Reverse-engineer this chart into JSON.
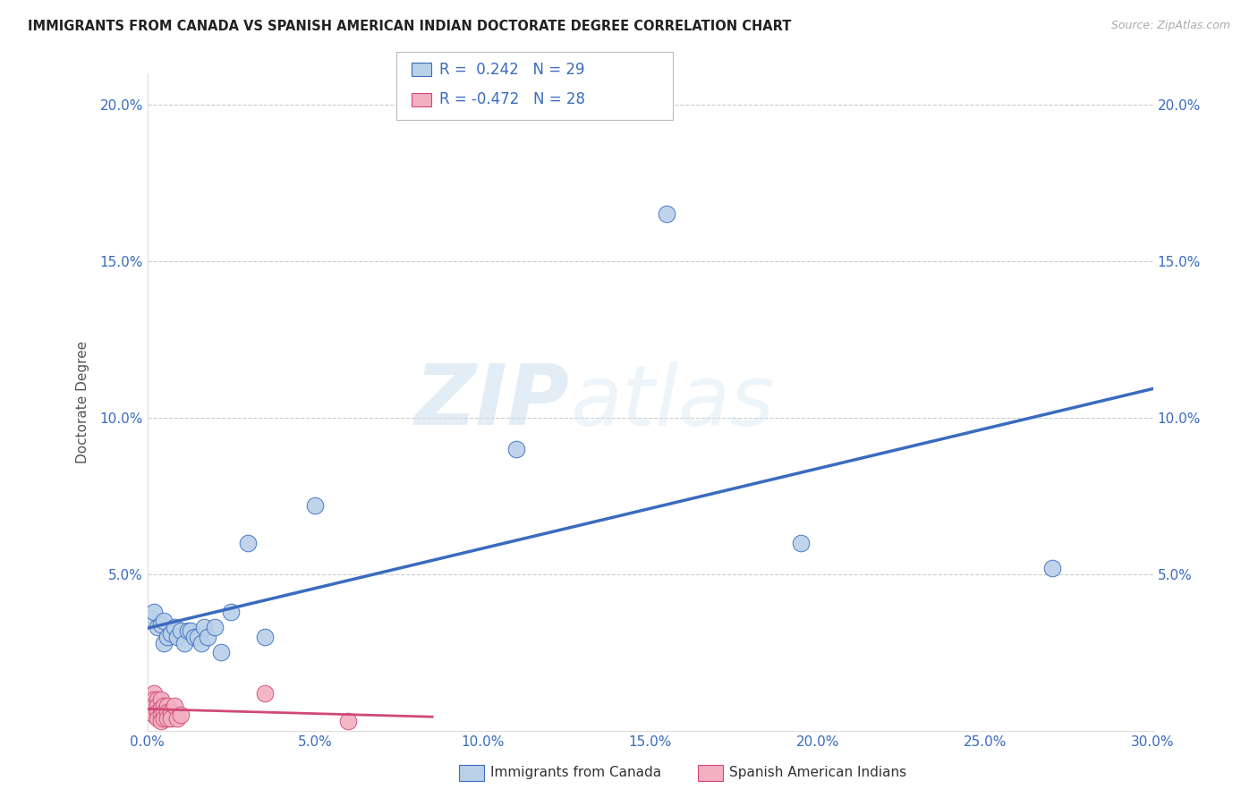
{
  "title": "IMMIGRANTS FROM CANADA VS SPANISH AMERICAN INDIAN DOCTORATE DEGREE CORRELATION CHART",
  "source": "Source: ZipAtlas.com",
  "ylabel": "Doctorate Degree",
  "xlabel": "",
  "xlim": [
    0.0,
    0.3
  ],
  "ylim": [
    0.0,
    0.21
  ],
  "xticks": [
    0.0,
    0.05,
    0.1,
    0.15,
    0.2,
    0.25,
    0.3
  ],
  "yticks": [
    0.0,
    0.05,
    0.1,
    0.15,
    0.2
  ],
  "xtick_labels": [
    "0.0%",
    "5.0%",
    "10.0%",
    "15.0%",
    "20.0%",
    "25.0%",
    "30.0%"
  ],
  "ytick_labels": [
    "",
    "5.0%",
    "10.0%",
    "15.0%",
    "20.0%"
  ],
  "canada_x": [
    0.001,
    0.002,
    0.003,
    0.004,
    0.005,
    0.005,
    0.006,
    0.007,
    0.008,
    0.009,
    0.01,
    0.011,
    0.012,
    0.013,
    0.014,
    0.015,
    0.016,
    0.017,
    0.018,
    0.02,
    0.022,
    0.025,
    0.03,
    0.035,
    0.05,
    0.11,
    0.155,
    0.195,
    0.27
  ],
  "canada_y": [
    0.036,
    0.038,
    0.033,
    0.034,
    0.035,
    0.028,
    0.03,
    0.031,
    0.033,
    0.03,
    0.032,
    0.028,
    0.032,
    0.032,
    0.03,
    0.03,
    0.028,
    0.033,
    0.03,
    0.033,
    0.025,
    0.038,
    0.06,
    0.03,
    0.072,
    0.09,
    0.165,
    0.06,
    0.052
  ],
  "spanish_x": [
    0.001,
    0.001,
    0.001,
    0.002,
    0.002,
    0.002,
    0.002,
    0.003,
    0.003,
    0.003,
    0.003,
    0.004,
    0.004,
    0.004,
    0.004,
    0.005,
    0.005,
    0.005,
    0.006,
    0.006,
    0.006,
    0.007,
    0.007,
    0.008,
    0.009,
    0.01,
    0.035,
    0.06
  ],
  "spanish_y": [
    0.01,
    0.008,
    0.006,
    0.012,
    0.01,
    0.008,
    0.005,
    0.01,
    0.008,
    0.006,
    0.004,
    0.01,
    0.007,
    0.005,
    0.003,
    0.008,
    0.006,
    0.004,
    0.008,
    0.006,
    0.004,
    0.006,
    0.004,
    0.008,
    0.004,
    0.005,
    0.012,
    0.003
  ],
  "canada_color": "#b8d0e8",
  "canada_line_color": "#3a6bbf",
  "spanish_color": "#f2b0c0",
  "spanish_line_color": "#d04878",
  "canada_R": 0.242,
  "canada_N": 29,
  "spanish_R": -0.472,
  "spanish_N": 28,
  "legend_label_canada": "Immigrants from Canada",
  "legend_label_spanish": "Spanish American Indians",
  "watermark_zip": "ZIP",
  "watermark_atlas": "atlas",
  "background_color": "#ffffff",
  "grid_color": "#cccccc"
}
